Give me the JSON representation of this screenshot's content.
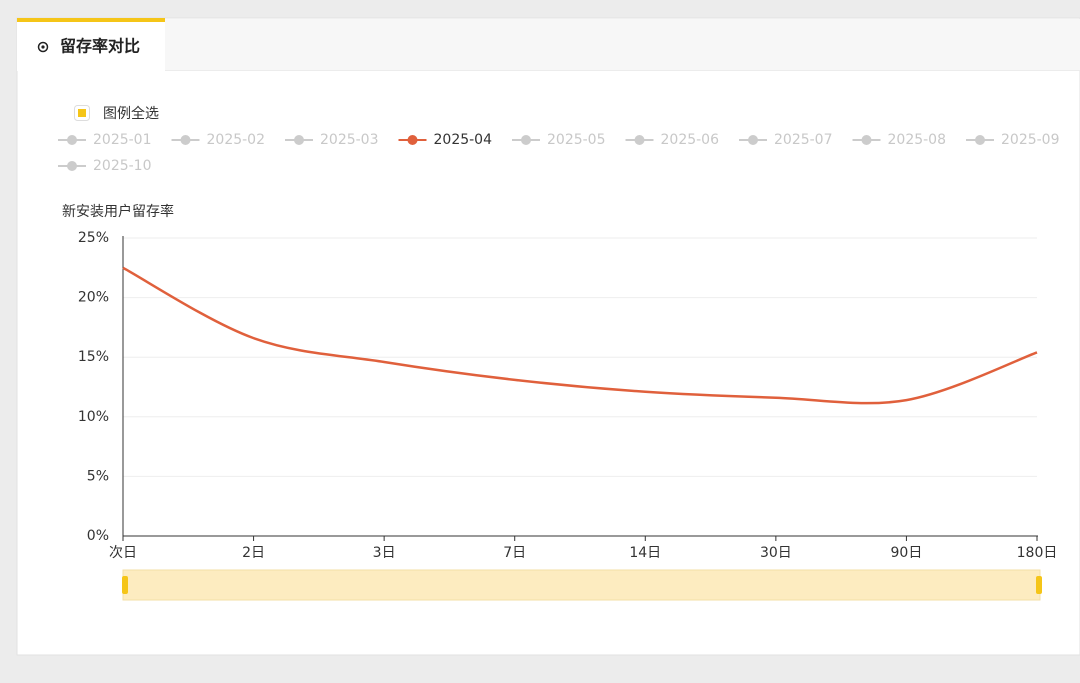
{
  "tab": {
    "title": "留存率对比"
  },
  "legend_select_all": "图例全选",
  "chart_data": {
    "type": "line",
    "smooth": true,
    "y_title": "新安装用户留存率",
    "categories": [
      "次日",
      "2日",
      "3日",
      "7日",
      "14日",
      "30日",
      "90日",
      "180日"
    ],
    "inactive_color": "#cccccc",
    "series": [
      {
        "name": "2025-01",
        "visible": false
      },
      {
        "name": "2025-02",
        "visible": false
      },
      {
        "name": "2025-03",
        "visible": false
      },
      {
        "name": "2025-04",
        "visible": true,
        "color": "#e0603c",
        "values": [
          22.5,
          16.6,
          14.6,
          13.1,
          12.1,
          11.6,
          11.4,
          15.4
        ]
      },
      {
        "name": "2025-05",
        "visible": false
      },
      {
        "name": "2025-06",
        "visible": false
      },
      {
        "name": "2025-07",
        "visible": false
      },
      {
        "name": "2025-08",
        "visible": false
      },
      {
        "name": "2025-09",
        "visible": false
      },
      {
        "name": "2025-10",
        "visible": false
      }
    ],
    "ylim": [
      0,
      25
    ],
    "yticks": [
      {
        "value": 0,
        "label": "0%"
      },
      {
        "value": 5,
        "label": "5%"
      },
      {
        "value": 10,
        "label": "10%"
      },
      {
        "value": 15,
        "label": "15%"
      },
      {
        "value": 20,
        "label": "20%"
      },
      {
        "value": 25,
        "label": "25%"
      }
    ],
    "grid": true
  }
}
